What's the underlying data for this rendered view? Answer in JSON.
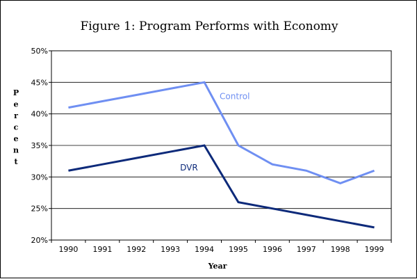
{
  "chart_data": {
    "type": "line",
    "title": "Figure 1:  Program Performs with Economy",
    "xlabel": "Year",
    "ylabel": "Percent",
    "x": [
      "1990",
      "1991",
      "1992",
      "1993",
      "1994",
      "1995",
      "1996",
      "1997",
      "1998",
      "1999"
    ],
    "ylim": [
      20,
      50
    ],
    "yticks": [
      "20%",
      "25%",
      "30%",
      "35%",
      "40%",
      "45%",
      "50%"
    ],
    "grid": true,
    "series": [
      {
        "name": "Control",
        "color": "#6f8ff2",
        "values": [
          41,
          42,
          43,
          44,
          45,
          35,
          32,
          31,
          29,
          31
        ]
      },
      {
        "name": "DVR",
        "color": "#0d2a7a",
        "values": [
          31,
          32,
          33,
          34,
          35,
          26,
          25,
          24,
          23,
          22
        ]
      }
    ]
  }
}
